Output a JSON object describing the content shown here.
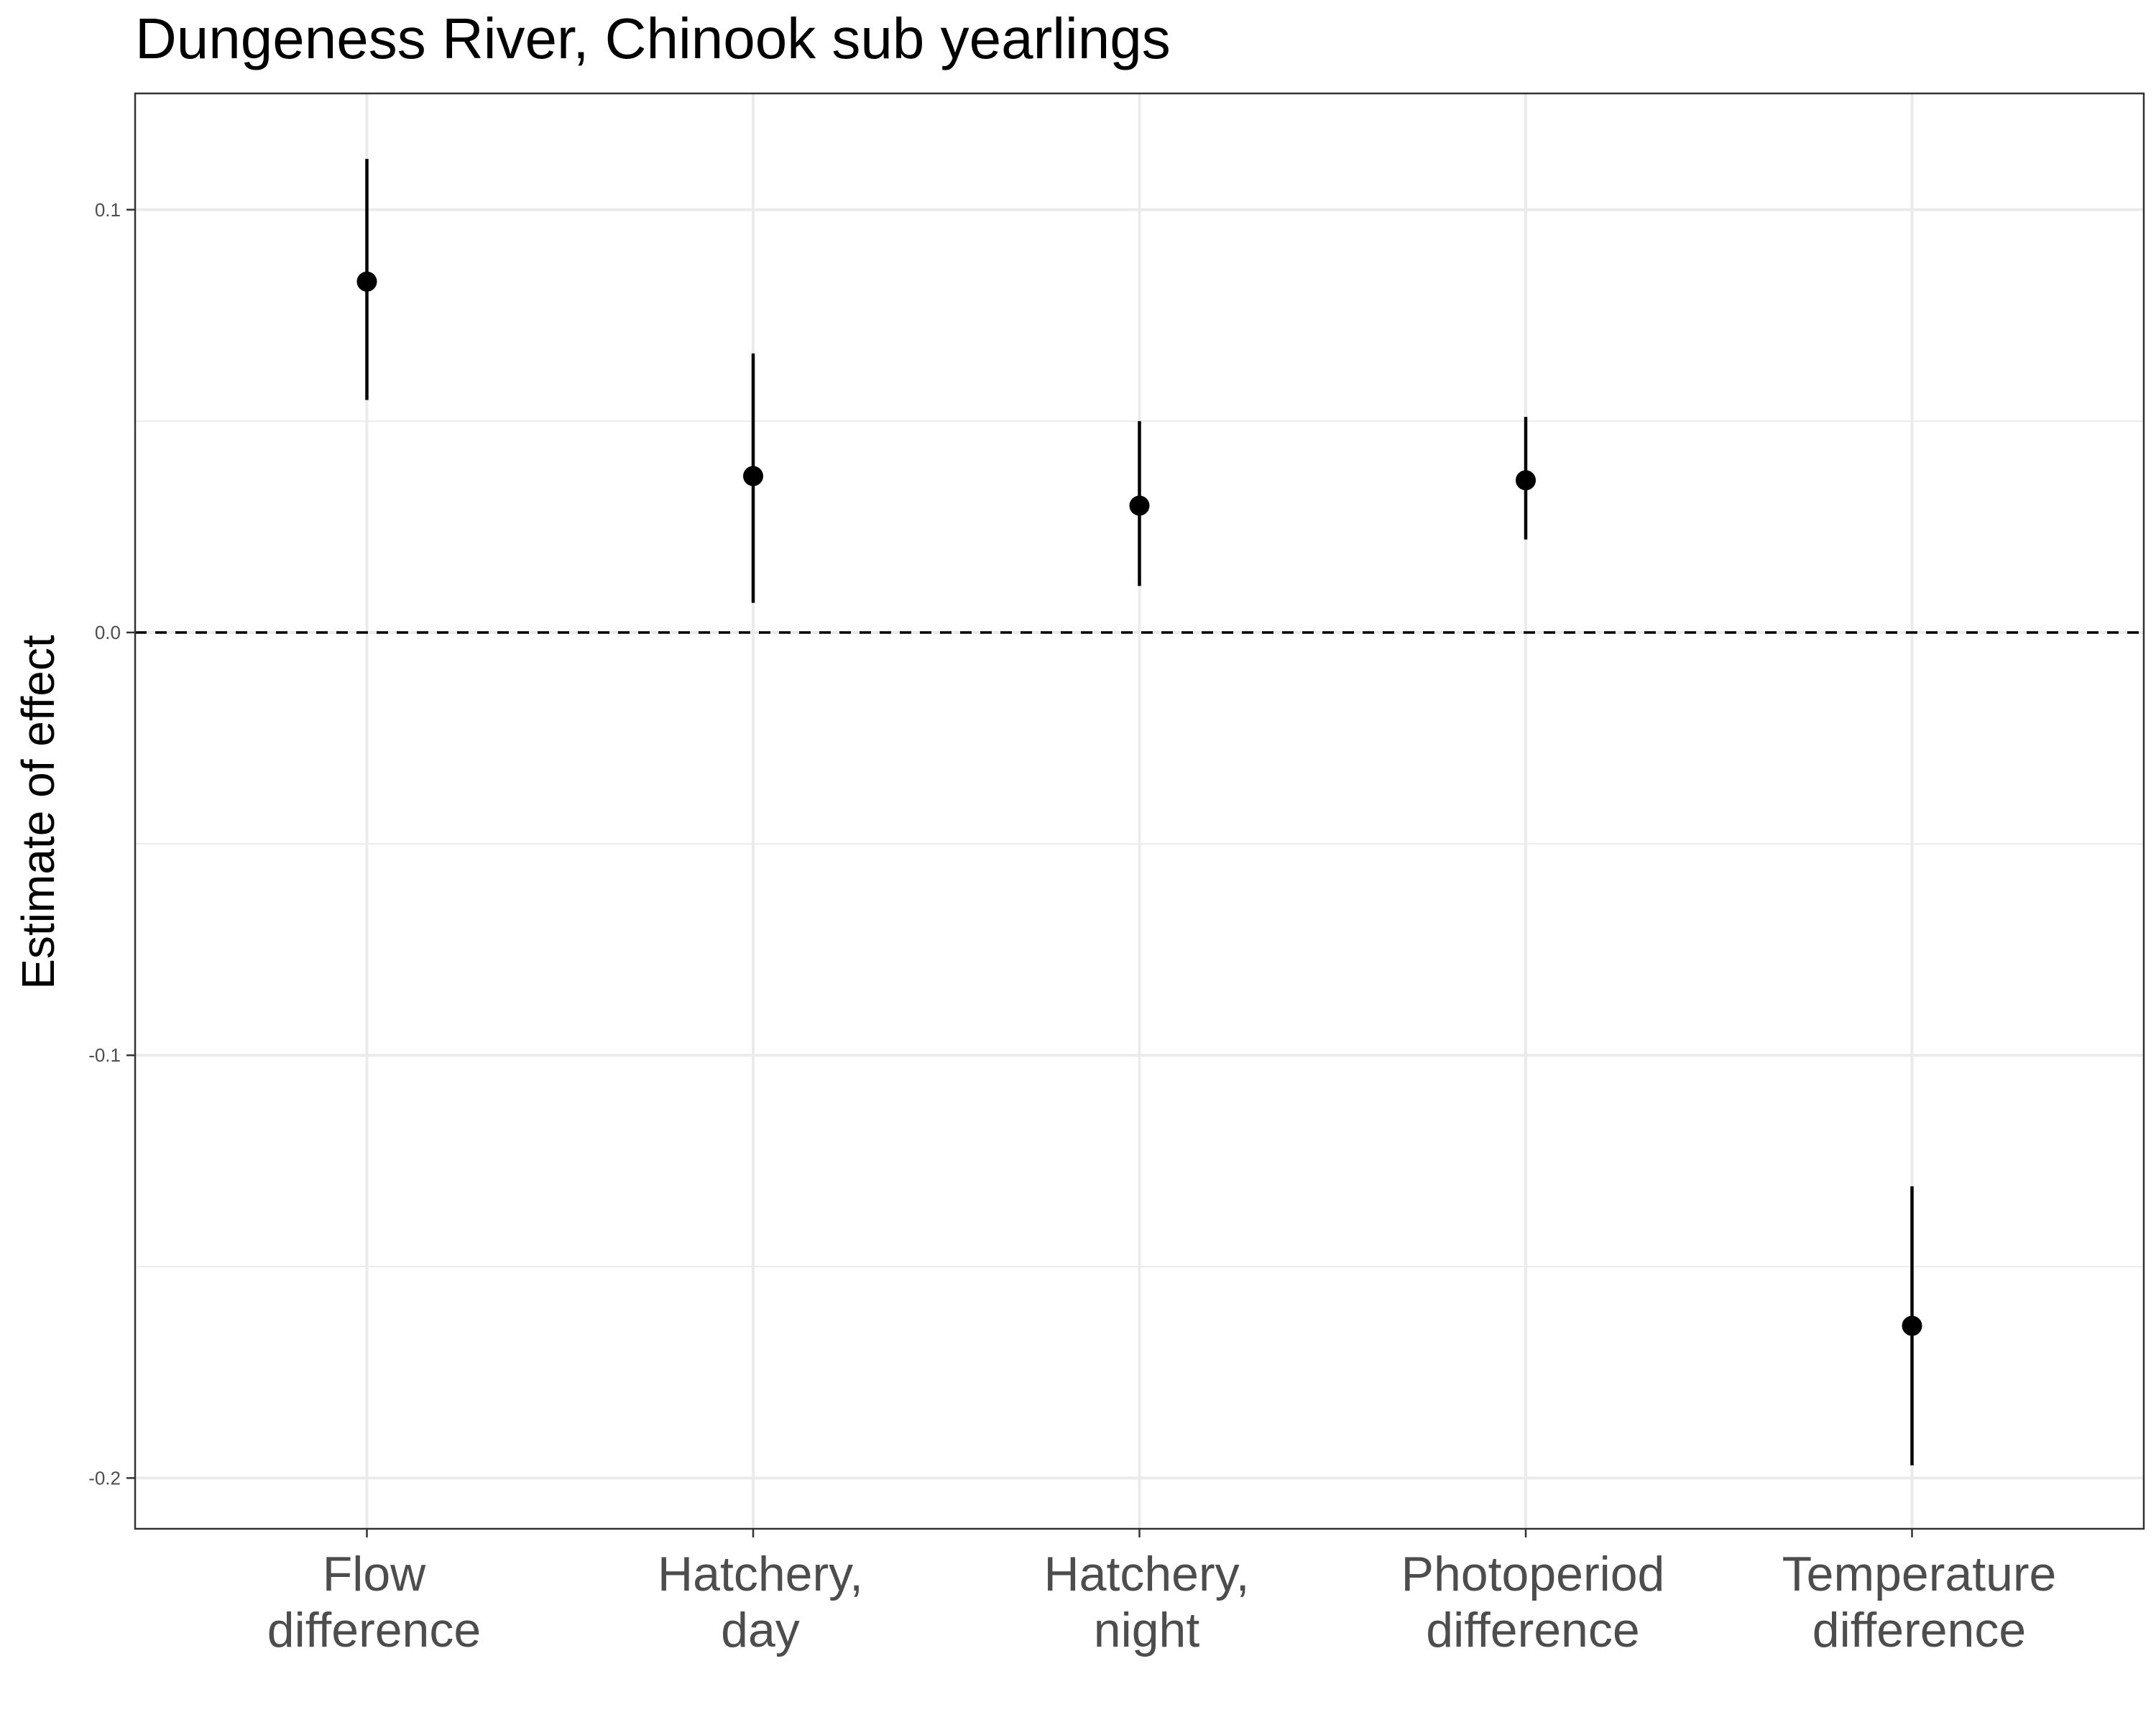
{
  "chart_data": {
    "type": "scatter",
    "title": "Dungeness River, Chinook sub yearlings",
    "xlabel": "",
    "ylabel": "Estimate of effect",
    "categories": [
      [
        "Flow",
        "difference"
      ],
      [
        "Hatchery,",
        "day"
      ],
      [
        "Hatchery,",
        "night"
      ],
      [
        "Photoperiod",
        "difference"
      ],
      [
        "Temperature",
        "difference"
      ]
    ],
    "estimates": [
      0.083,
      0.037,
      0.03,
      0.036,
      -0.164
    ],
    "lower": [
      0.055,
      0.007,
      0.011,
      0.022,
      -0.197
    ],
    "upper": [
      0.112,
      0.066,
      0.05,
      0.051,
      -0.131
    ],
    "ylim": [
      -0.212,
      0.1275
    ],
    "yticks": [
      "0.1",
      "0.0",
      "-0.1",
      "-0.2"
    ],
    "ytick_values": [
      0.1,
      0.0,
      -0.1,
      -0.2
    ],
    "reference_line": 0.0,
    "grid": true,
    "legend": "none"
  },
  "colors": {
    "point": "#000000",
    "grid": "#ebebeb",
    "reference_line": "#000000",
    "axis_text": "#4d4d4d",
    "panel_border": "#333333"
  }
}
